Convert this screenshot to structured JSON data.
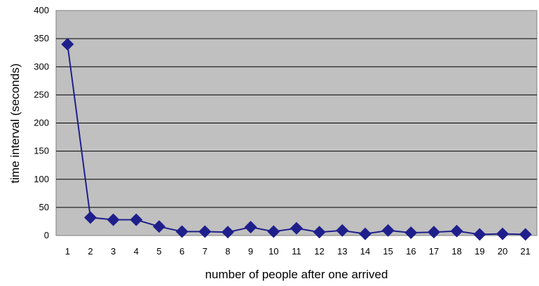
{
  "chart_data": {
    "type": "line",
    "title": "",
    "xlabel": "number of people after one arrived",
    "ylabel": "time interval (seconds)",
    "ylim": [
      0,
      400
    ],
    "yticks": [
      0,
      50,
      100,
      150,
      200,
      250,
      300,
      350,
      400
    ],
    "grid": true,
    "legend": "none",
    "x": [
      1,
      2,
      3,
      4,
      5,
      6,
      7,
      8,
      9,
      10,
      11,
      12,
      13,
      14,
      15,
      16,
      17,
      18,
      19,
      20,
      21
    ],
    "series": [
      {
        "values": [
          340,
          32,
          28,
          28,
          16,
          7,
          7,
          6,
          15,
          7,
          13,
          6,
          9,
          3,
          9,
          5,
          6,
          8,
          2,
          3,
          2
        ]
      }
    ]
  },
  "colors": {
    "plot_background": "#c0c0c0",
    "gridline": "#000000",
    "series": "#1f1f8c"
  }
}
